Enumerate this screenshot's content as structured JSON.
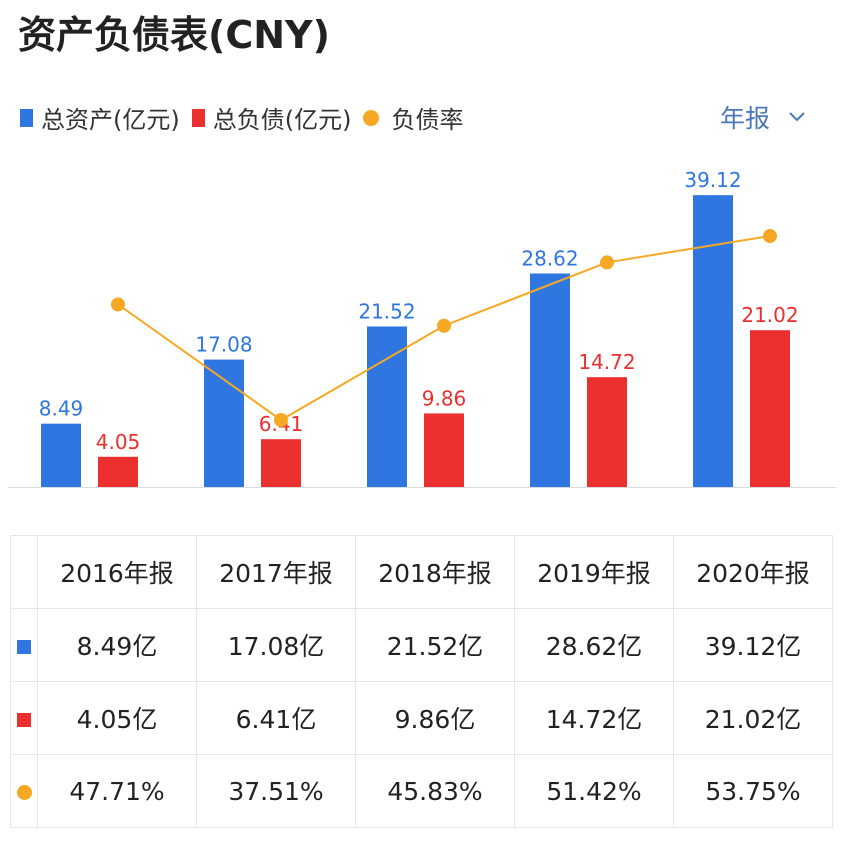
{
  "title": "资产负债表(CNY)",
  "legend": [
    {
      "label": "总资产(亿元)",
      "color": "#2f76e0",
      "shape": "square"
    },
    {
      "label": "总负债(亿元)",
      "color": "#ec2f2f",
      "shape": "square"
    },
    {
      "label": "负债率",
      "color": "#f7a823",
      "shape": "circle"
    }
  ],
  "period_select": {
    "value": "年报",
    "icon": "chevron-down-icon"
  },
  "chart_data": {
    "type": "bar",
    "categories": [
      "2016年报",
      "2017年报",
      "2018年报",
      "2019年报",
      "2020年报"
    ],
    "series": [
      {
        "name": "总资产(亿元)",
        "type": "bar",
        "color": "#2f76e0",
        "values": [
          8.49,
          17.08,
          21.52,
          28.62,
          39.12
        ],
        "labels": [
          "8.49",
          "17.08",
          "21.52",
          "28.62",
          "39.12"
        ]
      },
      {
        "name": "总负债(亿元)",
        "type": "bar",
        "color": "#ec2f2f",
        "values": [
          4.05,
          6.41,
          9.86,
          14.72,
          21.02
        ],
        "labels": [
          "4.05",
          "6.41",
          "9.86",
          "14.72",
          "21.02"
        ]
      },
      {
        "name": "负债率",
        "type": "line",
        "color": "#f7a823",
        "values": [
          47.71,
          37.51,
          45.83,
          51.42,
          53.75
        ],
        "unit": "%"
      }
    ],
    "grid": false,
    "legend_position": "top-left"
  },
  "table": {
    "headers": [
      "2016年报",
      "2017年报",
      "2018年报",
      "2019年报",
      "2020年报"
    ],
    "rows": [
      {
        "marker": "square",
        "color": "#2f76e0",
        "cells": [
          "8.49亿",
          "17.08亿",
          "21.52亿",
          "28.62亿",
          "39.12亿"
        ]
      },
      {
        "marker": "square",
        "color": "#ec2f2f",
        "cells": [
          "4.05亿",
          "6.41亿",
          "9.86亿",
          "14.72亿",
          "21.02亿"
        ]
      },
      {
        "marker": "circle",
        "color": "#f7a823",
        "cells": [
          "47.71%",
          "37.51%",
          "45.83%",
          "51.42%",
          "53.75%"
        ]
      }
    ]
  }
}
